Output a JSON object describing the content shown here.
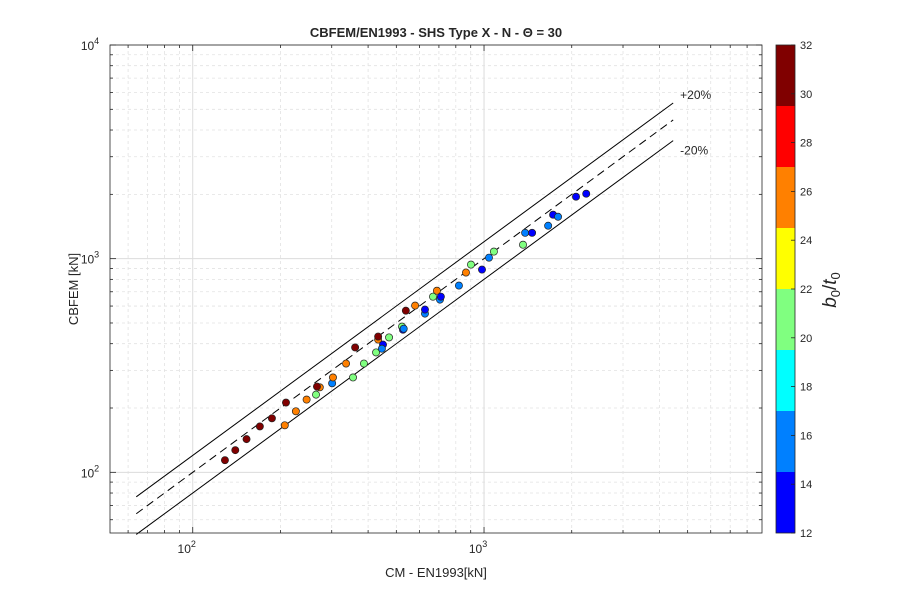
{
  "chart_data": {
    "type": "scatter",
    "title": "CBFEM/EN1993 - SHS Type X  - N - Θ = 30",
    "xlabel": "CM - EN1993[kN]",
    "ylabel": "CBFEM",
    "ylabel_unit": "[kN]",
    "xscale": "log",
    "yscale": "log",
    "xlim": [
      52,
      9000
    ],
    "ylim": [
      52,
      10000
    ],
    "x_ticks": [
      {
        "value": 100,
        "base": "10",
        "exp": "2"
      },
      {
        "value": 1000,
        "base": "10",
        "exp": "3"
      }
    ],
    "y_ticks": [
      {
        "value": 100,
        "base": "10",
        "exp": "2"
      },
      {
        "value": 1000,
        "base": "10",
        "exp": "3"
      },
      {
        "value": 10000,
        "base": "10",
        "exp": "4"
      }
    ],
    "grid": true,
    "reference_lines": [
      {
        "label": "",
        "factor": 1.0,
        "style": "dashed",
        "x_range": [
          64,
          4460
        ]
      },
      {
        "label": "+20%",
        "factor": 1.2,
        "style": "solid",
        "x_range": [
          64,
          4460
        ]
      },
      {
        "label": "-20%",
        "factor": 0.8,
        "style": "solid",
        "x_range": [
          64,
          4460
        ]
      }
    ],
    "colorbar": {
      "label_base": "b",
      "label_sub0": "0",
      "label_sep": "/",
      "label_base2": "t",
      "label_sub1": "0",
      "range": [
        12,
        32
      ],
      "ticks": [
        12,
        14,
        16,
        18,
        20,
        22,
        24,
        26,
        28,
        30,
        32
      ],
      "bins": [
        {
          "from": 12,
          "to": 14.5,
          "color": "#0000ff"
        },
        {
          "from": 14.5,
          "to": 17,
          "color": "#0080ff"
        },
        {
          "from": 17,
          "to": 19.5,
          "color": "#00ffff"
        },
        {
          "from": 19.5,
          "to": 22,
          "color": "#80ff80"
        },
        {
          "from": 22,
          "to": 24.5,
          "color": "#ffff00"
        },
        {
          "from": 24.5,
          "to": 27,
          "color": "#ff8000"
        },
        {
          "from": 27,
          "to": 29.5,
          "color": "#ff0000"
        },
        {
          "from": 29.5,
          "to": 32,
          "color": "#800000"
        }
      ]
    },
    "points": [
      {
        "x": 129,
        "y": 114,
        "c": 31
      },
      {
        "x": 140,
        "y": 127,
        "c": 31
      },
      {
        "x": 153,
        "y": 143,
        "c": 31
      },
      {
        "x": 170,
        "y": 164,
        "c": 31
      },
      {
        "x": 187,
        "y": 179,
        "c": 31
      },
      {
        "x": 209,
        "y": 212,
        "c": 31
      },
      {
        "x": 207,
        "y": 166,
        "c": 26
      },
      {
        "x": 226,
        "y": 193,
        "c": 26
      },
      {
        "x": 246,
        "y": 219,
        "c": 26
      },
      {
        "x": 265,
        "y": 231,
        "c": 21
      },
      {
        "x": 273,
        "y": 250,
        "c": 26
      },
      {
        "x": 267,
        "y": 252,
        "c": 31
      },
      {
        "x": 301,
        "y": 261,
        "c": 16
      },
      {
        "x": 303,
        "y": 278,
        "c": 26
      },
      {
        "x": 336,
        "y": 323,
        "c": 26
      },
      {
        "x": 355,
        "y": 278,
        "c": 21
      },
      {
        "x": 361,
        "y": 384,
        "c": 31
      },
      {
        "x": 387,
        "y": 323,
        "c": 21
      },
      {
        "x": 426,
        "y": 364,
        "c": 21
      },
      {
        "x": 433,
        "y": 418,
        "c": 26
      },
      {
        "x": 433,
        "y": 432,
        "c": 31
      },
      {
        "x": 450,
        "y": 396,
        "c": 13
      },
      {
        "x": 446,
        "y": 379,
        "c": 16
      },
      {
        "x": 472,
        "y": 428,
        "c": 21
      },
      {
        "x": 523,
        "y": 481,
        "c": 21
      },
      {
        "x": 527,
        "y": 465,
        "c": 13
      },
      {
        "x": 530,
        "y": 470,
        "c": 16
      },
      {
        "x": 539,
        "y": 571,
        "c": 31
      },
      {
        "x": 580,
        "y": 603,
        "c": 26
      },
      {
        "x": 627,
        "y": 553,
        "c": 16
      },
      {
        "x": 627,
        "y": 578,
        "c": 13
      },
      {
        "x": 668,
        "y": 664,
        "c": 21
      },
      {
        "x": 689,
        "y": 708,
        "c": 26
      },
      {
        "x": 706,
        "y": 643,
        "c": 16
      },
      {
        "x": 711,
        "y": 664,
        "c": 13
      },
      {
        "x": 820,
        "y": 748,
        "c": 16
      },
      {
        "x": 867,
        "y": 861,
        "c": 26
      },
      {
        "x": 902,
        "y": 938,
        "c": 21
      },
      {
        "x": 984,
        "y": 889,
        "c": 13
      },
      {
        "x": 1040,
        "y": 1011,
        "c": 16
      },
      {
        "x": 1081,
        "y": 1079,
        "c": 21
      },
      {
        "x": 1361,
        "y": 1162,
        "c": 21
      },
      {
        "x": 1384,
        "y": 1321,
        "c": 16
      },
      {
        "x": 1462,
        "y": 1321,
        "c": 13
      },
      {
        "x": 1660,
        "y": 1426,
        "c": 16
      },
      {
        "x": 1726,
        "y": 1606,
        "c": 13
      },
      {
        "x": 1795,
        "y": 1571,
        "c": 16
      },
      {
        "x": 2069,
        "y": 1950,
        "c": 13
      },
      {
        "x": 2243,
        "y": 2014,
        "c": 13
      }
    ]
  }
}
